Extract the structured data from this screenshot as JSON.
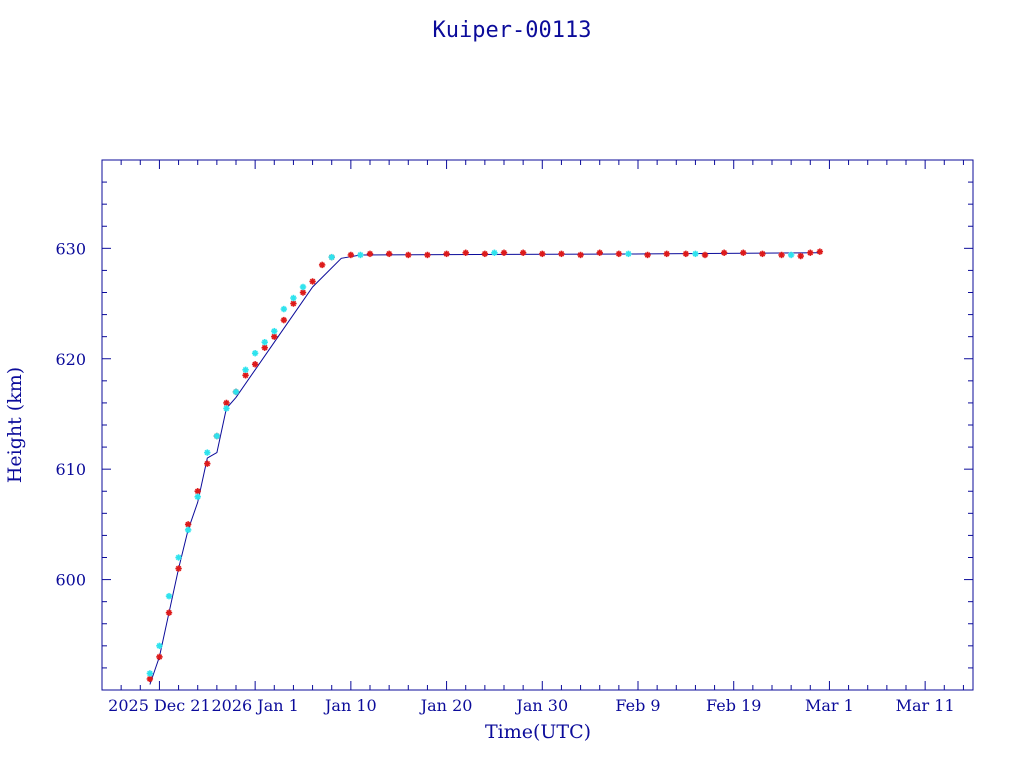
{
  "chart_data": {
    "type": "scatter",
    "title": "Kuiper-00113",
    "xlabel": "Time(UTC)",
    "ylabel": "Height (km)",
    "xlim": [
      "2025-12-15",
      "2026-03-16"
    ],
    "ylim": [
      590,
      638
    ],
    "x_tick_labels": [
      {
        "x": "2025-12-21",
        "label": "2025 Dec 21"
      },
      {
        "x": "2025-12-31",
        "label": "2026 Jan 1"
      },
      {
        "x": "2026-01-10",
        "label": "Jan 10"
      },
      {
        "x": "2026-01-20",
        "label": "Jan 20"
      },
      {
        "x": "2026-01-30",
        "label": "Jan 30"
      },
      {
        "x": "2026-02-09",
        "label": "Feb  9"
      },
      {
        "x": "2026-02-19",
        "label": "Feb 19"
      },
      {
        "x": "2026-03-01",
        "label": "Mar  1"
      },
      {
        "x": "2026-03-11",
        "label": "Mar 11"
      }
    ],
    "y_tick_labels": [
      600,
      610,
      620,
      630
    ],
    "grid": false,
    "colors": {
      "axes": "#0b0b9a",
      "line": "#0b0b9a",
      "series_a": "#dd1a1a",
      "series_b": "#2ee3ee"
    },
    "line": {
      "x": [
        "2025-12-20",
        "2025-12-21",
        "2025-12-22",
        "2025-12-23",
        "2025-12-24",
        "2025-12-25",
        "2025-12-26",
        "2025-12-27",
        "2025-12-28",
        "2025-12-29",
        "2026-01-02",
        "2026-01-06",
        "2026-01-09",
        "2026-01-11",
        "2026-02-10",
        "2026-02-28"
      ],
      "y": [
        590.5,
        593,
        597,
        601,
        604.5,
        607,
        611,
        611.5,
        615.5,
        616.5,
        621.5,
        626.5,
        629.1,
        629.4,
        629.5,
        629.6
      ]
    },
    "series": [
      {
        "color": "#dd1a1a",
        "x": [
          "2025-12-20",
          "2025-12-21",
          "2025-12-22",
          "2025-12-23",
          "2025-12-24",
          "2025-12-25",
          "2025-12-26",
          "2025-12-27",
          "2025-12-28",
          "2025-12-29",
          "2025-12-30",
          "2025-12-31",
          "2026-01-01",
          "2026-01-02",
          "2026-01-03",
          "2026-01-04",
          "2026-01-05",
          "2026-01-06",
          "2026-01-07",
          "2026-01-08",
          "2026-01-10",
          "2026-01-12",
          "2026-01-14",
          "2026-01-16",
          "2026-01-18",
          "2026-01-20",
          "2026-01-22",
          "2026-01-24",
          "2026-01-26",
          "2026-01-28",
          "2026-01-30",
          "2026-02-01",
          "2026-02-03",
          "2026-02-05",
          "2026-02-07",
          "2026-02-10",
          "2026-02-12",
          "2026-02-14",
          "2026-02-16",
          "2026-02-18",
          "2026-02-20",
          "2026-02-22",
          "2026-02-24",
          "2026-02-26",
          "2026-02-27",
          "2026-02-28"
        ],
        "y": [
          591,
          593,
          597,
          601,
          605,
          608,
          610.5,
          613,
          616,
          617,
          618.5,
          619.5,
          621,
          622,
          623.5,
          625,
          626,
          627,
          628.5,
          629.2,
          629.4,
          629.5,
          629.5,
          629.4,
          629.4,
          629.5,
          629.6,
          629.5,
          629.6,
          629.6,
          629.5,
          629.5,
          629.4,
          629.6,
          629.5,
          629.4,
          629.5,
          629.5,
          629.4,
          629.6,
          629.6,
          629.5,
          629.4,
          629.3,
          629.6,
          629.7
        ]
      },
      {
        "color": "#2ee3ee",
        "x": [
          "2025-12-20",
          "2025-12-21",
          "2025-12-22",
          "2025-12-23",
          "2025-12-24",
          "2025-12-25",
          "2025-12-26",
          "2025-12-27",
          "2025-12-28",
          "2025-12-29",
          "2025-12-30",
          "2025-12-31",
          "2026-01-01",
          "2026-01-02",
          "2026-01-03",
          "2026-01-04",
          "2026-01-05",
          "2026-01-08",
          "2026-01-11",
          "2026-01-25",
          "2026-02-08",
          "2026-02-15",
          "2026-02-25"
        ],
        "y": [
          591.5,
          594,
          598.5,
          602,
          604.5,
          607.5,
          611.5,
          613,
          615.5,
          617,
          619,
          620.5,
          621.5,
          622.5,
          624.5,
          625.5,
          626.5,
          629.2,
          629.4,
          629.6,
          629.5,
          629.5,
          629.4
        ]
      }
    ]
  }
}
